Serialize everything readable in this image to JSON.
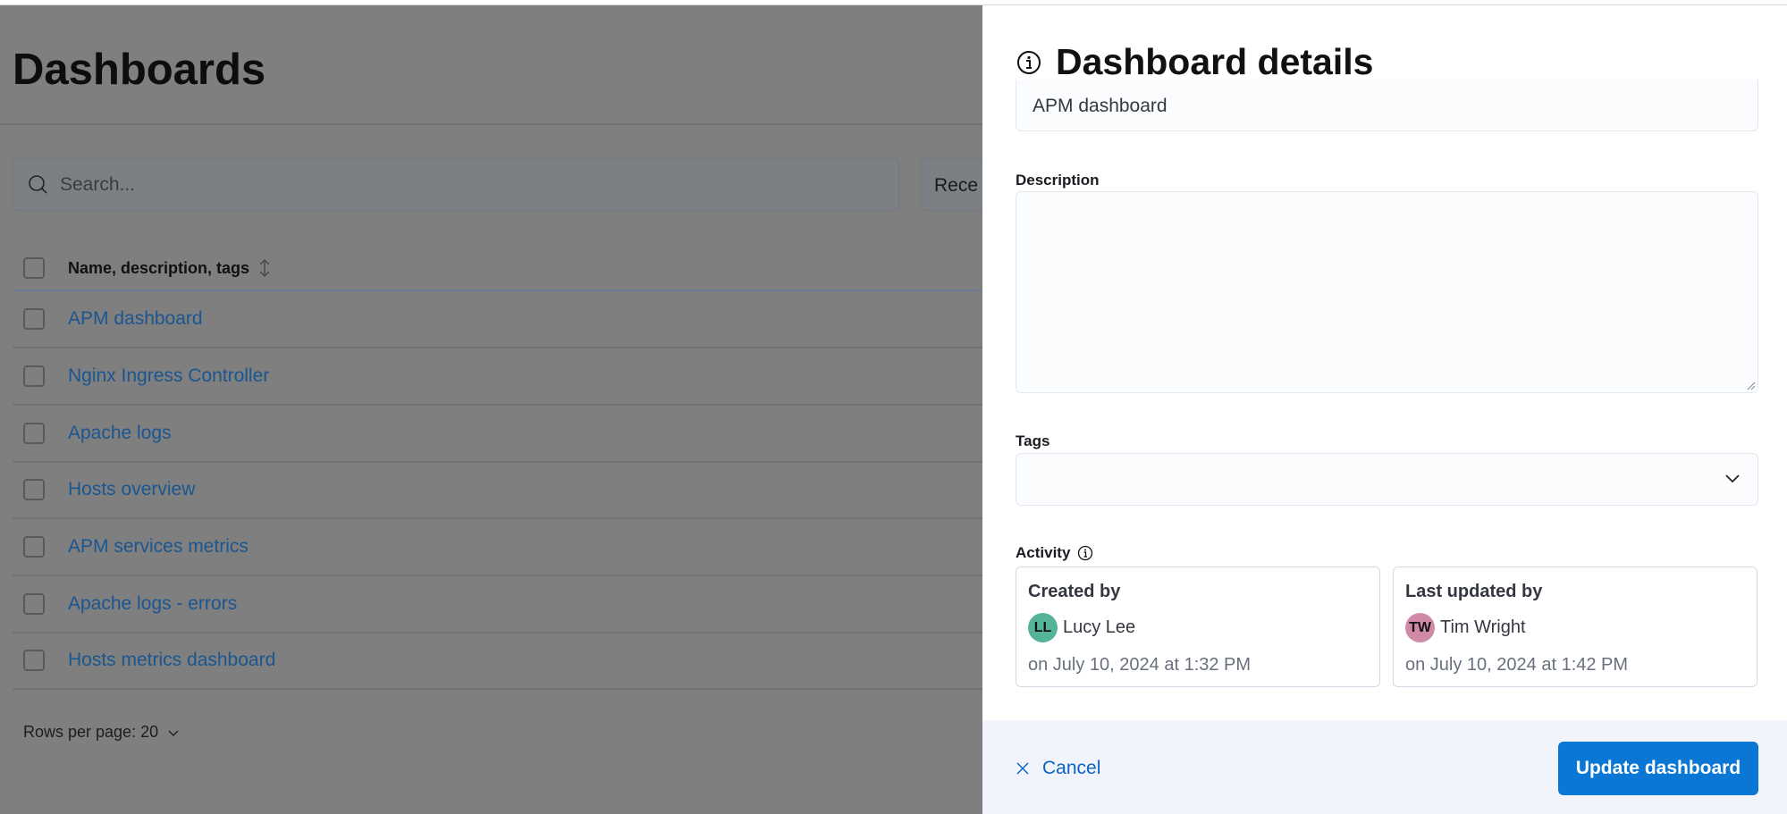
{
  "page": {
    "title": "Dashboards",
    "search_placeholder": "Search...",
    "sort_label": "Rece",
    "table": {
      "header": "Name, description, tags",
      "rows": [
        "APM dashboard",
        "Nginx Ingress Controller",
        "Apache logs",
        "Hosts overview",
        "APM services metrics",
        "Apache logs - errors",
        "Hosts metrics dashboard"
      ]
    },
    "rows_per_page": "Rows per page: 20"
  },
  "flyout": {
    "title": "Dashboard details",
    "name_value": "APM dashboard",
    "description_label": "Description",
    "description_value": "",
    "tags_label": "Tags",
    "activity_label": "Activity",
    "created": {
      "heading": "Created by",
      "initials": "LL",
      "name": "Lucy Lee",
      "date": "on July 10, 2024 at 1:32 PM",
      "avatar_color": "#54b399"
    },
    "updated": {
      "heading": "Last updated by",
      "initials": "TW",
      "name": "Tim Wright",
      "date": "on July 10, 2024 at 1:42 PM",
      "avatar_color": "#d08aa8"
    },
    "cancel_label": "Cancel",
    "submit_label": "Update dashboard"
  },
  "colors": {
    "accent": "#0b77d4",
    "link": "#1a5690"
  }
}
